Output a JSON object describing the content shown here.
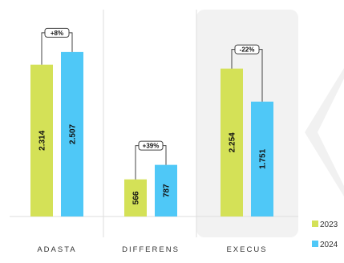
{
  "chart_data": {
    "type": "bar",
    "categories": [
      "ADASTA",
      "DIFFERENS",
      "EXECUS"
    ],
    "series": [
      {
        "name": "2023",
        "color": "#d4e157",
        "values": [
          2314,
          566,
          2254
        ],
        "labels": [
          "2.314",
          "566",
          "2.254"
        ]
      },
      {
        "name": "2024",
        "color": "#4fc8f7",
        "values": [
          2507,
          787,
          1751
        ],
        "labels": [
          "2.507",
          "787",
          "1.751"
        ]
      }
    ],
    "changes": [
      "+8%",
      "+39%",
      "-22%"
    ],
    "highlight_category": "EXECUS",
    "ylim": [
      0,
      3300
    ],
    "grid": false,
    "legend_position": "bottom-right",
    "title": "",
    "xlabel": "",
    "ylabel": ""
  }
}
